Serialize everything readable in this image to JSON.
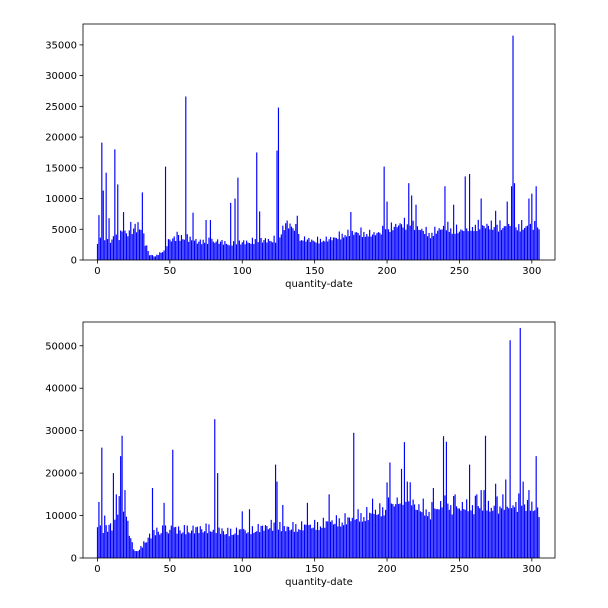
{
  "colors": {
    "bar": "#0000ff",
    "axis": "#000000",
    "background": "#ffffff"
  },
  "chart_data": [
    {
      "type": "bar",
      "title": "",
      "xlabel": "quantity-date",
      "ylabel": "",
      "xlim": [
        -10,
        316
      ],
      "ylim": [
        0,
        38400
      ],
      "xticks": [
        0,
        50,
        100,
        150,
        200,
        250,
        300
      ],
      "yticks": [
        0,
        5000,
        10000,
        15000,
        20000,
        25000,
        30000,
        35000
      ],
      "grid": false,
      "base_profile": [
        [
          0,
          3200
        ],
        [
          10,
          3400
        ],
        [
          18,
          4200
        ],
        [
          25,
          5200
        ],
        [
          30,
          5800
        ],
        [
          33,
          2800
        ],
        [
          36,
          900
        ],
        [
          40,
          600
        ],
        [
          45,
          1500
        ],
        [
          50,
          3500
        ],
        [
          60,
          3800
        ],
        [
          70,
          3000
        ],
        [
          80,
          3200
        ],
        [
          90,
          2800
        ],
        [
          100,
          2900
        ],
        [
          110,
          3200
        ],
        [
          120,
          3300
        ],
        [
          125,
          3500
        ],
        [
          130,
          6000
        ],
        [
          136,
          5500
        ],
        [
          140,
          3500
        ],
        [
          150,
          3200
        ],
        [
          160,
          3400
        ],
        [
          170,
          4200
        ],
        [
          180,
          4600
        ],
        [
          190,
          4200
        ],
        [
          200,
          5000
        ],
        [
          210,
          6000
        ],
        [
          220,
          5400
        ],
        [
          230,
          4300
        ],
        [
          240,
          5500
        ],
        [
          250,
          4800
        ],
        [
          260,
          5600
        ],
        [
          270,
          5600
        ],
        [
          280,
          5500
        ],
        [
          290,
          5600
        ],
        [
          300,
          5500
        ],
        [
          305,
          5700
        ]
      ],
      "spikes": [
        [
          1,
          7300
        ],
        [
          3,
          19100
        ],
        [
          4,
          11300
        ],
        [
          6,
          14200
        ],
        [
          8,
          6800
        ],
        [
          12,
          18000
        ],
        [
          14,
          12300
        ],
        [
          16,
          4800
        ],
        [
          18,
          7800
        ],
        [
          23,
          6200
        ],
        [
          31,
          11000
        ],
        [
          47,
          15200
        ],
        [
          55,
          4600
        ],
        [
          61,
          26600
        ],
        [
          66,
          7700
        ],
        [
          75,
          6500
        ],
        [
          78,
          6500
        ],
        [
          92,
          9300
        ],
        [
          95,
          10000
        ],
        [
          97,
          13400
        ],
        [
          110,
          17500
        ],
        [
          112,
          7900
        ],
        [
          124,
          17800
        ],
        [
          125,
          24800
        ],
        [
          138,
          7200
        ],
        [
          175,
          7800
        ],
        [
          198,
          15200
        ],
        [
          200,
          9500
        ],
        [
          215,
          12500
        ],
        [
          217,
          10500
        ],
        [
          220,
          9000
        ],
        [
          240,
          12000
        ],
        [
          246,
          9000
        ],
        [
          254,
          13600
        ],
        [
          257,
          14000
        ],
        [
          265,
          10000
        ],
        [
          275,
          8000
        ],
        [
          283,
          9500
        ],
        [
          286,
          12000
        ],
        [
          287,
          36500
        ],
        [
          288,
          12500
        ],
        [
          298,
          10000
        ],
        [
          300,
          10800
        ],
        [
          303,
          12000
        ]
      ]
    },
    {
      "type": "bar",
      "title": "",
      "xlabel": "quantity-date",
      "ylabel": "",
      "xlim": [
        -10,
        316
      ],
      "ylim": [
        0,
        55600
      ],
      "xticks": [
        0,
        50,
        100,
        150,
        200,
        250,
        300
      ],
      "yticks": [
        0,
        10000,
        20000,
        30000,
        40000,
        50000
      ],
      "grid": false,
      "base_profile": [
        [
          0,
          6500
        ],
        [
          10,
          7800
        ],
        [
          16,
          14000
        ],
        [
          20,
          10000
        ],
        [
          23,
          4500
        ],
        [
          26,
          1500
        ],
        [
          30,
          2500
        ],
        [
          35,
          5000
        ],
        [
          40,
          6500
        ],
        [
          50,
          7000
        ],
        [
          60,
          6800
        ],
        [
          70,
          7000
        ],
        [
          80,
          7200
        ],
        [
          90,
          6200
        ],
        [
          100,
          6500
        ],
        [
          110,
          7000
        ],
        [
          120,
          7800
        ],
        [
          130,
          7200
        ],
        [
          140,
          7500
        ],
        [
          150,
          7800
        ],
        [
          160,
          8500
        ],
        [
          170,
          9000
        ],
        [
          180,
          10000
        ],
        [
          190,
          10500
        ],
        [
          200,
          12000
        ],
        [
          210,
          14000
        ],
        [
          215,
          16000
        ],
        [
          220,
          12000
        ],
        [
          230,
          11000
        ],
        [
          240,
          13000
        ],
        [
          250,
          12000
        ],
        [
          260,
          12500
        ],
        [
          270,
          12000
        ],
        [
          280,
          12500
        ],
        [
          290,
          13000
        ],
        [
          300,
          12000
        ],
        [
          305,
          11500
        ]
      ],
      "spikes": [
        [
          1,
          13200
        ],
        [
          3,
          26000
        ],
        [
          5,
          10000
        ],
        [
          11,
          20000
        ],
        [
          13,
          15000
        ],
        [
          16,
          24000
        ],
        [
          17,
          28800
        ],
        [
          19,
          16000
        ],
        [
          38,
          16500
        ],
        [
          46,
          13000
        ],
        [
          52,
          25500
        ],
        [
          81,
          32700
        ],
        [
          83,
          20000
        ],
        [
          100,
          11000
        ],
        [
          105,
          11500
        ],
        [
          123,
          22000
        ],
        [
          124,
          18000
        ],
        [
          128,
          12500
        ],
        [
          145,
          13000
        ],
        [
          160,
          15000
        ],
        [
          177,
          29500
        ],
        [
          190,
          14000
        ],
        [
          200,
          17800
        ],
        [
          202,
          22500
        ],
        [
          210,
          21000
        ],
        [
          212,
          27300
        ],
        [
          214,
          18000
        ],
        [
          225,
          14000
        ],
        [
          232,
          16500
        ],
        [
          239,
          28700
        ],
        [
          241,
          27400
        ],
        [
          247,
          15000
        ],
        [
          257,
          22000
        ],
        [
          262,
          15000
        ],
        [
          265,
          16000
        ],
        [
          267,
          16000
        ],
        [
          268,
          28800
        ],
        [
          275,
          17500
        ],
        [
          280,
          15000
        ],
        [
          282,
          18500
        ],
        [
          285,
          51300
        ],
        [
          292,
          54200
        ],
        [
          294,
          18000
        ],
        [
          298,
          16000
        ],
        [
          303,
          24000
        ]
      ]
    }
  ]
}
